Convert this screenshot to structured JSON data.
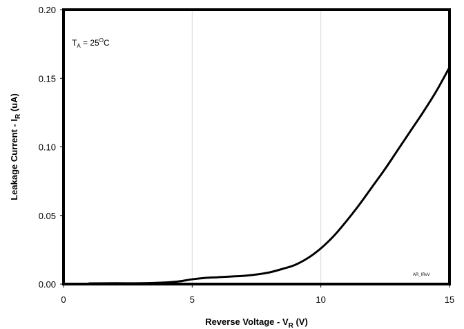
{
  "chart_data": {
    "type": "line",
    "title": "",
    "xlabel": {
      "main": "Reverse Voltage - V",
      "sub": "R",
      "unit": " (V)"
    },
    "ylabel": {
      "main": "Leakage Current - I",
      "sub": "R",
      "unit": " (uA)"
    },
    "xlim": [
      0,
      15
    ],
    "ylim": [
      0,
      0.2
    ],
    "xticks": [
      0,
      5,
      10,
      15
    ],
    "xtick_labels": [
      "0",
      "5",
      "10",
      "15"
    ],
    "yticks": [
      0,
      0.05,
      0.1,
      0.15,
      0.2
    ],
    "ytick_labels": [
      "0.00",
      "0.05",
      "0.10",
      "0.15",
      "0.20"
    ],
    "grid": {
      "vertical": true,
      "horizontal": false
    },
    "annotation": {
      "t": "T",
      "sub": "A",
      "eq": " = 25",
      "sup": "O",
      "unit": "C"
    },
    "watermark": "AR_IRvV",
    "series": [
      {
        "color": "#000000",
        "x": [
          1,
          2,
          3,
          4,
          4.5,
          5,
          5.5,
          6,
          6.5,
          7,
          7.5,
          8,
          8.5,
          9,
          9.5,
          10,
          10.5,
          11,
          11.5,
          12,
          12.5,
          13,
          13.5,
          14,
          14.5,
          15
        ],
        "y": [
          0.0005,
          0.0006,
          0.0006,
          0.0012,
          0.002,
          0.0035,
          0.0045,
          0.005,
          0.0055,
          0.006,
          0.007,
          0.0085,
          0.011,
          0.014,
          0.019,
          0.026,
          0.035,
          0.046,
          0.058,
          0.071,
          0.084,
          0.098,
          0.112,
          0.126,
          0.141,
          0.158
        ]
      }
    ]
  }
}
